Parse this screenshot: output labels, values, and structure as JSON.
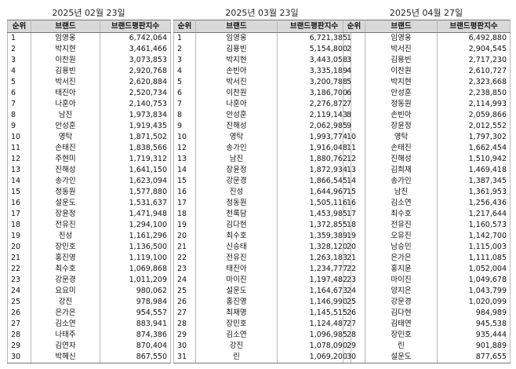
{
  "headers": [
    "순위",
    "브랜드",
    "브랜드평판지수"
  ],
  "tables": [
    {
      "date": "2025년 02월 23일",
      "rows": [
        [
          "1",
          "임영웅",
          "6,742,064"
        ],
        [
          "2",
          "박지현",
          "3,461,466"
        ],
        [
          "3",
          "이찬원",
          "3,073,853"
        ],
        [
          "4",
          "김용빈",
          "2,920,768"
        ],
        [
          "5",
          "박서진",
          "2,620,884"
        ],
        [
          "6",
          "태진아",
          "2,520,734"
        ],
        [
          "7",
          "나훈아",
          "2,140,753"
        ],
        [
          "8",
          "남진",
          "1,973,834"
        ],
        [
          "9",
          "안성훈",
          "1,919,435"
        ],
        [
          "10",
          "영탁",
          "1,871,502"
        ],
        [
          "11",
          "손태진",
          "1,838,566"
        ],
        [
          "12",
          "주현미",
          "1,719,312"
        ],
        [
          "13",
          "진해성",
          "1,641,150"
        ],
        [
          "14",
          "송가인",
          "1,623,094"
        ],
        [
          "15",
          "정동원",
          "1,577,880"
        ],
        [
          "16",
          "설운도",
          "1,531,637"
        ],
        [
          "17",
          "장윤정",
          "1,471,948"
        ],
        [
          "18",
          "전유진",
          "1,294,100"
        ],
        [
          "19",
          "진성",
          "1,161,296"
        ],
        [
          "20",
          "장민호",
          "1,136,500"
        ],
        [
          "21",
          "홍진영",
          "1,119,100"
        ],
        [
          "22",
          "최수호",
          "1,069,868"
        ],
        [
          "23",
          "강문경",
          "1,011,209"
        ],
        [
          "24",
          "요요미",
          "980,062"
        ],
        [
          "25",
          "강진",
          "978,984"
        ],
        [
          "26",
          "은가은",
          "954,557"
        ],
        [
          "27",
          "김소연",
          "883,941"
        ],
        [
          "28",
          "나태주",
          "874,386"
        ],
        [
          "29",
          "김연자",
          "870,404"
        ],
        [
          "30",
          "박혜신",
          "867,550"
        ]
      ]
    },
    {
      "date": "2025년 03월 23일",
      "rows": [
        [
          "1",
          "임영웅",
          "6,721,385"
        ],
        [
          "2",
          "김용빈",
          "5,154,800"
        ],
        [
          "3",
          "박지현",
          "3,443,058"
        ],
        [
          "4",
          "손빈아",
          "3,335,189"
        ],
        [
          "5",
          "박서진",
          "3,200,788"
        ],
        [
          "6",
          "이찬원",
          "3,186,700"
        ],
        [
          "7",
          "나훈아",
          "2,276,872"
        ],
        [
          "8",
          "안성훈",
          "2,119,143"
        ],
        [
          "9",
          "진해성",
          "2,062,985"
        ],
        [
          "10",
          "영탁",
          "1,993,774"
        ],
        [
          "12",
          "송가인",
          "1,916,048"
        ],
        [
          "13",
          "남진",
          "1,880,762"
        ],
        [
          "14",
          "장윤정",
          "1,872,934"
        ],
        [
          "15",
          "강문경",
          "1,866,545"
        ],
        [
          "16",
          "진성",
          "1,644,967"
        ],
        [
          "17",
          "정동원",
          "1,505,116"
        ],
        [
          "18",
          "천록담",
          "1,453,985"
        ],
        [
          "19",
          "김다현",
          "1,372,855"
        ],
        [
          "20",
          "최수호",
          "1,359,389"
        ],
        [
          "21",
          "신승태",
          "1,328,120"
        ],
        [
          "22",
          "전유진",
          "1,263,183"
        ],
        [
          "23",
          "태진아",
          "1,234,777"
        ],
        [
          "24",
          "마이진",
          "1,197,482"
        ],
        [
          "25",
          "설운도",
          "1,164,673"
        ],
        [
          "26",
          "홍진영",
          "1,146,990"
        ],
        [
          "27",
          "최재명",
          "1,145,515"
        ],
        [
          "28",
          "장민호",
          "1,124,487"
        ],
        [
          "29",
          "김소연",
          "1,096,985"
        ],
        [
          "30",
          "강진",
          "1,078,090"
        ],
        [
          "31",
          "린",
          "1,069,200"
        ]
      ]
    },
    {
      "date": "2025년 04월 27일",
      "rows": [
        [
          "1",
          "임영웅",
          "6,492,880"
        ],
        [
          "2",
          "박서진",
          "2,904,545"
        ],
        [
          "3",
          "김용빈",
          "2,717,230"
        ],
        [
          "4",
          "이찬원",
          "2,610,727"
        ],
        [
          "5",
          "박지현",
          "2,323,668"
        ],
        [
          "6",
          "안성훈",
          "2,238,850"
        ],
        [
          "7",
          "정동원",
          "2,114,993"
        ],
        [
          "8",
          "손빈아",
          "2,059,866"
        ],
        [
          "9",
          "장윤정",
          "2,012,552"
        ],
        [
          "10",
          "영탁",
          "1,797,302"
        ],
        [
          "11",
          "손태진",
          "1,662,454"
        ],
        [
          "12",
          "진해성",
          "1,510,942"
        ],
        [
          "13",
          "김희재",
          "1,469,418"
        ],
        [
          "14",
          "송가인",
          "1,387,345"
        ],
        [
          "15",
          "남진",
          "1,361,953"
        ],
        [
          "16",
          "김소연",
          "1,256,436"
        ],
        [
          "17",
          "최수호",
          "1,217,644"
        ],
        [
          "18",
          "전유진",
          "1,160,573"
        ],
        [
          "19",
          "오유진",
          "1,142,700"
        ],
        [
          "20",
          "남승민",
          "1,115,003"
        ],
        [
          "21",
          "은가은",
          "1,111,085"
        ],
        [
          "22",
          "홍지윤",
          "1,052,004"
        ],
        [
          "23",
          "마이진",
          "1,049,678"
        ],
        [
          "24",
          "양지은",
          "1,043,799"
        ],
        [
          "25",
          "강문경",
          "1,020,099"
        ],
        [
          "26",
          "김다현",
          "984,989"
        ],
        [
          "27",
          "김태연",
          "945,538"
        ],
        [
          "28",
          "장민호",
          "935,444"
        ],
        [
          "29",
          "린",
          "901,889"
        ],
        [
          "30",
          "설운도",
          "877,655"
        ]
      ]
    }
  ]
}
